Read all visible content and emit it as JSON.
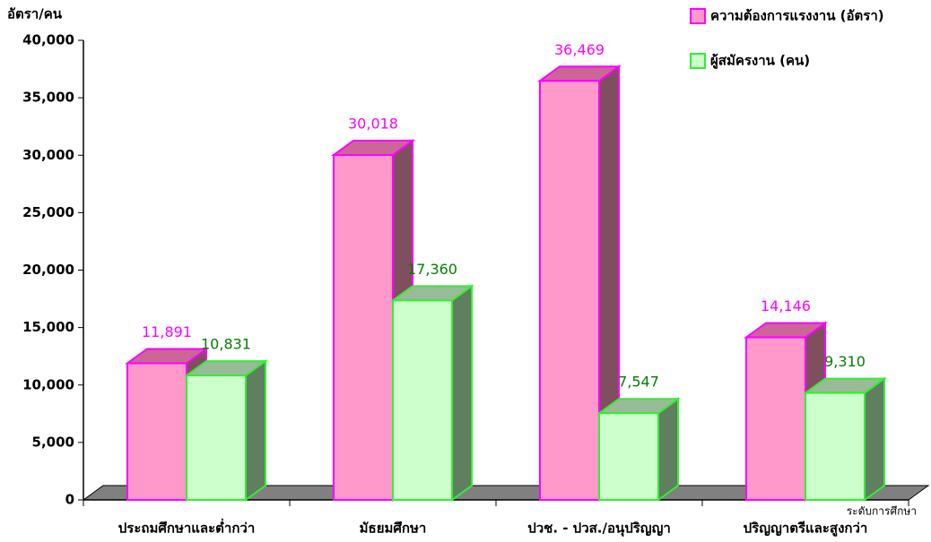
{
  "chart_data": {
    "type": "bar3d",
    "y_label": "อัตรา/คน",
    "x_label": "ระดับการศึกษา",
    "categories": [
      "ประถมศึกษาและต่ำกว่า",
      "มัธยมศึกษา",
      "ปวช. - ปวส./อนุปริญญา",
      "ปริญญาตรีและสูงกว่า"
    ],
    "series": [
      {
        "name": "ความต้องการแรงงาน (อัตรา)",
        "color": "#ff99cc",
        "edge": "#ff00ff",
        "label_color": "#ff00ff",
        "values": [
          11891,
          30018,
          36469,
          14146
        ],
        "value_labels": [
          "11,891",
          "30,018",
          "36,469",
          "14,146"
        ]
      },
      {
        "name": "ผู้สมัครงาน (คน)",
        "color": "#ccffcc",
        "edge": "#33ee33",
        "label_color": "#008000",
        "values": [
          10831,
          17360,
          7547,
          9310
        ],
        "value_labels": [
          "10,831",
          "17,360",
          "7,547",
          "9,310"
        ]
      }
    ],
    "ylim": [
      0,
      40000
    ],
    "yticks": [
      0,
      {
        "value": 5000,
        "label": "5,000"
      },
      {
        "value": 10000,
        "label": "10,000"
      },
      {
        "value": 15000,
        "label": "15,000"
      },
      {
        "value": 20000,
        "label": "20,000"
      },
      {
        "value": 25000,
        "label": "25,000"
      },
      {
        "value": 30000,
        "label": "30,000"
      },
      {
        "value": 35000,
        "label": "35,000"
      },
      {
        "value": 40000,
        "label": "40,000"
      }
    ],
    "legend": "top-right"
  }
}
